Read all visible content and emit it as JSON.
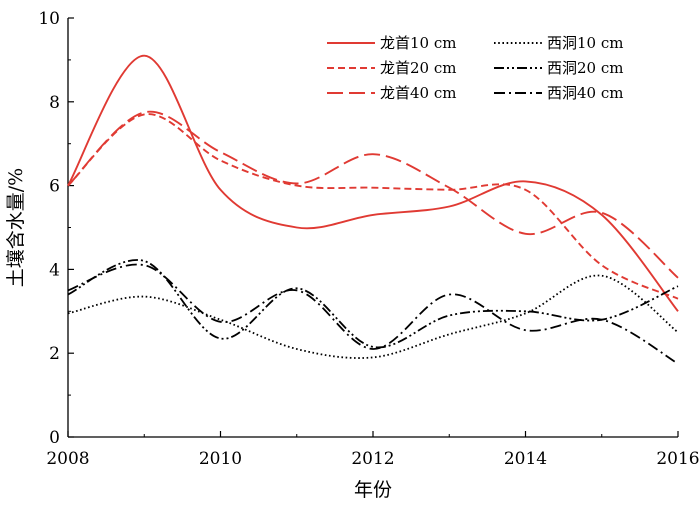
{
  "chart_data": {
    "type": "line",
    "xlabel": "年份",
    "ylabel": "土壤含水量/%",
    "xlim": [
      2008,
      2016
    ],
    "ylim": [
      0,
      10
    ],
    "xticks": [
      2008,
      2010,
      2012,
      2014,
      2016
    ],
    "yticks": [
      0,
      2,
      4,
      6,
      8,
      10
    ],
    "xtick_labels": [
      "2008",
      "2010",
      "2012",
      "2014",
      "2016"
    ],
    "ytick_labels": [
      "0",
      "2",
      "4",
      "6",
      "8",
      "10"
    ],
    "grid": false,
    "legend_position": "top-right",
    "x": [
      2008,
      2009,
      2010,
      2011,
      2012,
      2013,
      2014,
      2015,
      2016
    ],
    "series": [
      {
        "name": "龙首10 cm",
        "color": "#e03a33",
        "dash": "solid",
        "values": [
          6.0,
          9.1,
          5.9,
          5.0,
          5.3,
          5.5,
          6.1,
          5.3,
          3.0
        ]
      },
      {
        "name": "龙首20 cm",
        "color": "#e03a33",
        "dash": "short-dash",
        "values": [
          6.0,
          7.7,
          6.6,
          6.0,
          5.95,
          5.9,
          5.9,
          4.1,
          3.3
        ]
      },
      {
        "name": "龙首40 cm",
        "color": "#e03a33",
        "dash": "long-dash",
        "values": [
          6.0,
          7.75,
          6.8,
          6.05,
          6.75,
          5.95,
          4.85,
          5.35,
          3.8
        ]
      },
      {
        "name": "西洞10 cm",
        "color": "#000000",
        "dash": "dotted",
        "values": [
          2.95,
          3.35,
          2.8,
          2.1,
          1.9,
          2.45,
          2.95,
          3.85,
          2.5
        ]
      },
      {
        "name": "西洞20 cm",
        "color": "#000000",
        "dash": "dash-dot-dot",
        "values": [
          3.4,
          4.2,
          2.35,
          3.55,
          2.15,
          2.9,
          3.0,
          2.8,
          3.6
        ]
      },
      {
        "name": "西洞40 cm",
        "color": "#000000",
        "dash": "dash-dot",
        "values": [
          3.5,
          4.1,
          2.75,
          3.5,
          2.1,
          3.4,
          2.55,
          2.8,
          1.75
        ]
      }
    ]
  }
}
